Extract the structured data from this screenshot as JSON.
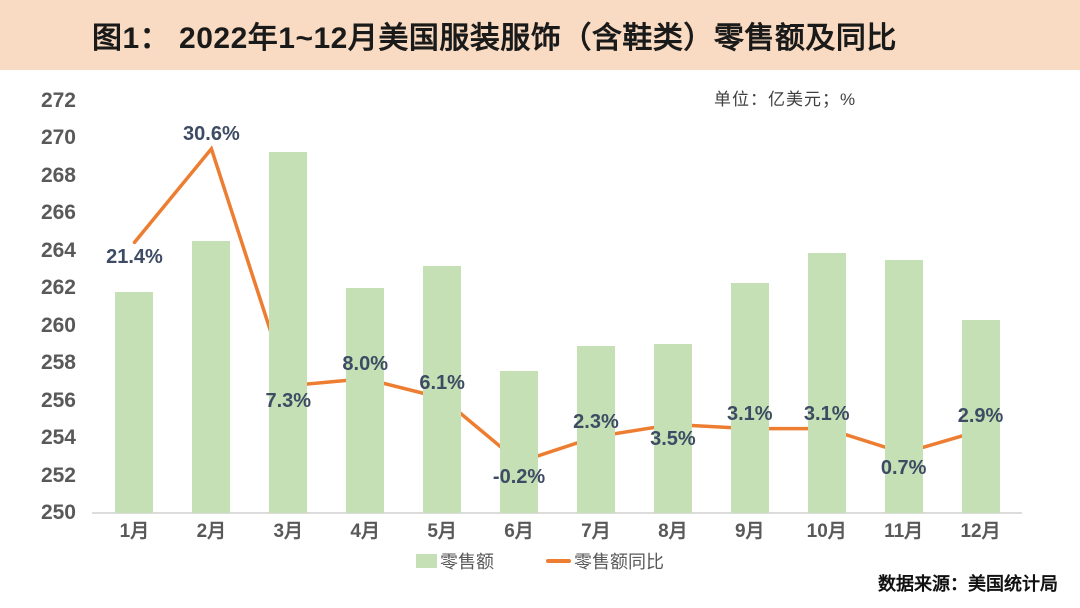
{
  "header": {
    "title": "图1： 2022年1~12月美国服装服饰（含鞋类）零售额及同比"
  },
  "unit_label": "单位：亿美元；%",
  "source": "数据来源：美国统计局",
  "legend": [
    {
      "label": "零售额",
      "swatch": "bar-swatch",
      "color": "#C5E0B4"
    },
    {
      "label": "零售额同比",
      "swatch": "line-swatch",
      "color": "#ED7D31"
    }
  ],
  "colors": {
    "bar": "#C5E0B4",
    "line": "#ED7D31",
    "data_label": "#3D4B64",
    "axis_text": "#595959",
    "axis_line": "#DCDCDC",
    "header_bg": "#F8DBC2",
    "title": "#1A1A1A",
    "unit": "#3F3F3F",
    "legend_text": "#595959",
    "source": "#111111"
  },
  "chart_data": {
    "type": "bar",
    "subtype": "bar+line combo, dual axis (secondary axis hidden)",
    "title": "图1： 2022年1~12月美国服装服饰（含鞋类）零售额及同比",
    "categories": [
      "1月",
      "2月",
      "3月",
      "4月",
      "5月",
      "6月",
      "7月",
      "8月",
      "9月",
      "10月",
      "11月",
      "12月"
    ],
    "series": [
      {
        "name": "零售额",
        "type": "bar",
        "unit": "亿美元",
        "axis": "left",
        "values": [
          261.8,
          264.5,
          269.3,
          262.0,
          263.2,
          257.6,
          258.9,
          259.0,
          262.3,
          263.9,
          263.5,
          260.3
        ]
      },
      {
        "name": "零售额同比",
        "type": "line",
        "unit": "%",
        "axis": "right-hidden",
        "values": [
          21.4,
          30.6,
          7.3,
          8.0,
          6.1,
          -0.2,
          2.3,
          3.5,
          3.1,
          3.1,
          0.7,
          2.9
        ],
        "labels": [
          "21.4%",
          "30.6%",
          "7.3%",
          "8.0%",
          "6.1%",
          "-0.2%",
          "2.3%",
          "3.5%",
          "3.1%",
          "3.1%",
          "0.7%",
          "2.9%"
        ],
        "label_side": [
          "below",
          "above",
          "below",
          "above",
          "above",
          "below",
          "above",
          "below",
          "above",
          "above",
          "below",
          "above"
        ]
      }
    ],
    "y_axis": {
      "min": 250,
      "max": 272,
      "step": 2,
      "ticks": [
        250,
        252,
        254,
        256,
        258,
        260,
        262,
        264,
        266,
        268,
        270,
        272
      ]
    },
    "y2_axis": {
      "min": -5.2,
      "max": 35.3,
      "visible": false
    },
    "grid": false,
    "legend_position": "bottom",
    "xlabel": "",
    "ylabel": "亿美元",
    "y2label": "%"
  }
}
